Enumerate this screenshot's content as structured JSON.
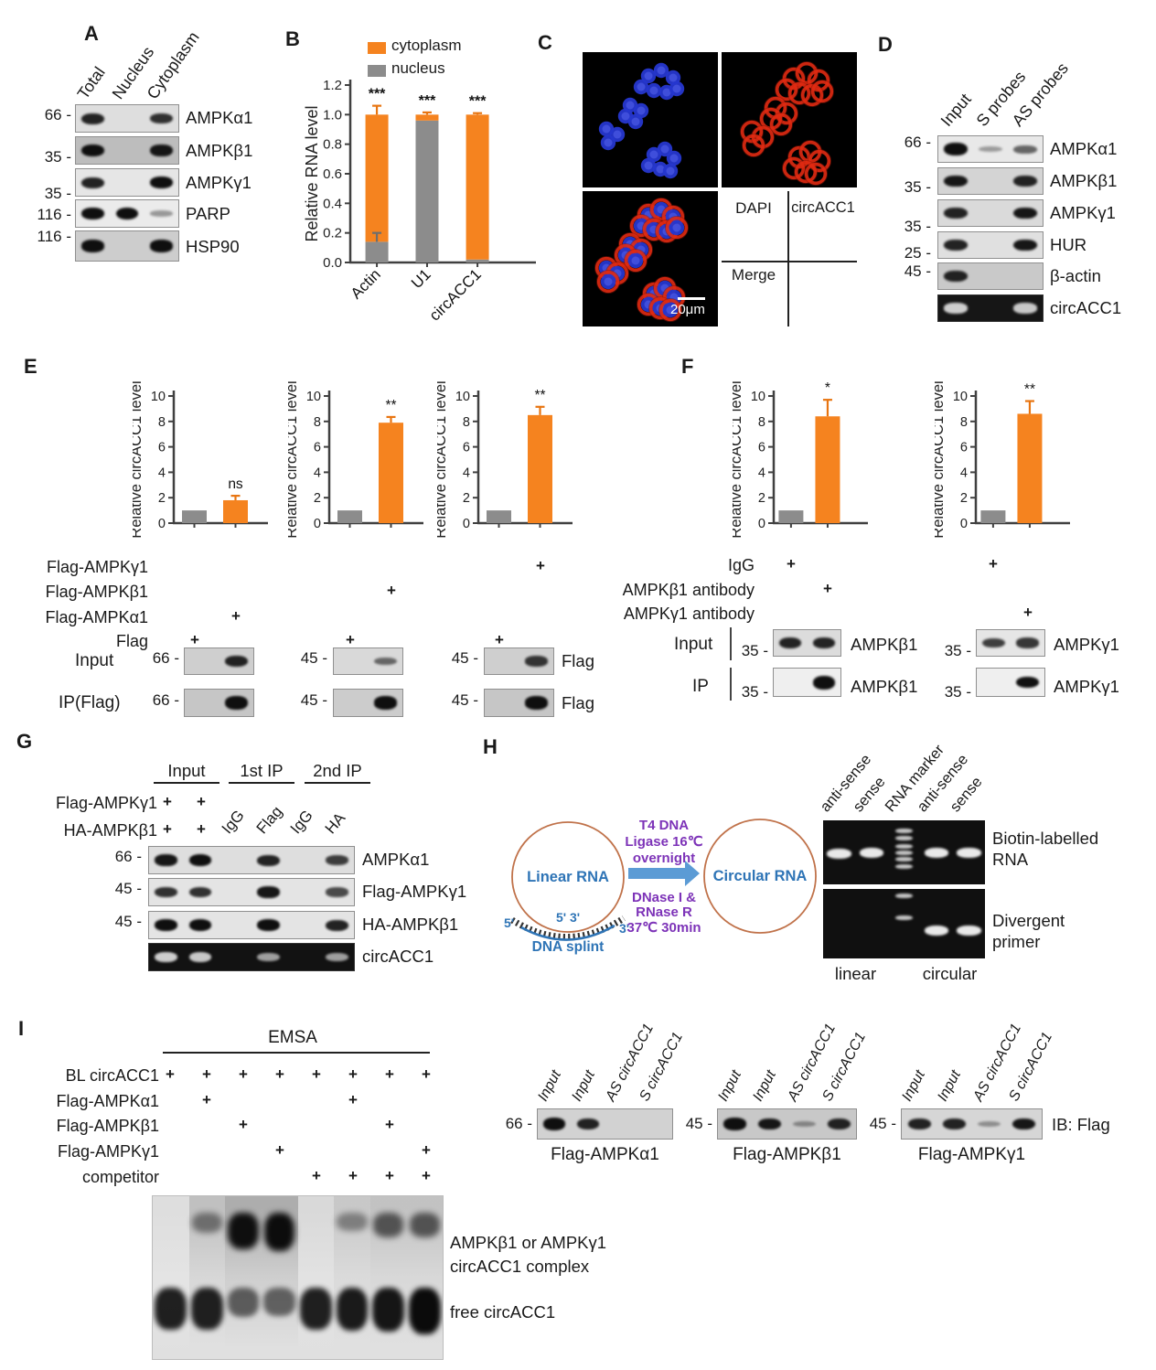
{
  "colors": {
    "orange": "#F5831F",
    "gray": "#8C8C8C",
    "purple": "#7D33B8",
    "blue": "#2E74B6",
    "arrow": "#5B9BD5",
    "circle_stroke": "#C0724A"
  },
  "chart_data": [
    {
      "id": "B",
      "type": "stacked-bar",
      "ylabel": "Relative RNA level",
      "ylim": [
        0,
        1.2
      ],
      "yticks": [
        "0.0",
        "0.2",
        "0.4",
        "0.6",
        "0.8",
        "1.0",
        "1.2"
      ],
      "categories": [
        "Actin",
        "U1",
        "circACC1"
      ],
      "series": [
        {
          "name": "nucleus",
          "color": "#8C8C8C",
          "values": [
            0.14,
            0.96,
            0.02
          ]
        },
        {
          "name": "cytoplasm",
          "color": "#F5831F",
          "values": [
            0.86,
            0.04,
            0.98
          ]
        }
      ],
      "total_errors": [
        0.06,
        0.015,
        0.01
      ],
      "nucleus_errors": [
        0.06,
        0,
        0
      ],
      "sig": [
        "***",
        "***",
        "***"
      ],
      "legend": [
        {
          "label": "cytoplasm",
          "color": "#F5831F"
        },
        {
          "label": "nucleus",
          "color": "#8C8C8C"
        }
      ]
    },
    {
      "id": "E1",
      "type": "bar",
      "ylabel": "Relative circACC1 level",
      "ylim": [
        0,
        10
      ],
      "yticks": [
        "0",
        "2",
        "4",
        "6",
        "8",
        "10"
      ],
      "values": [
        1,
        1.8
      ],
      "colors": [
        "#8C8C8C",
        "#F5831F"
      ],
      "errors": [
        0,
        0.35
      ],
      "sig": "ns"
    },
    {
      "id": "E2",
      "type": "bar",
      "ylabel": "Relative circACC1 level",
      "ylim": [
        0,
        10
      ],
      "yticks": [
        "0",
        "2",
        "4",
        "6",
        "8",
        "10"
      ],
      "values": [
        1,
        7.9
      ],
      "colors": [
        "#8C8C8C",
        "#F5831F"
      ],
      "errors": [
        0,
        0.45
      ],
      "sig": "**"
    },
    {
      "id": "E3",
      "type": "bar",
      "ylabel": "Relative circACC1 level",
      "ylim": [
        0,
        10
      ],
      "yticks": [
        "0",
        "2",
        "4",
        "6",
        "8",
        "10"
      ],
      "values": [
        1,
        8.5
      ],
      "colors": [
        "#8C8C8C",
        "#F5831F"
      ],
      "errors": [
        0,
        0.65
      ],
      "sig": "**"
    },
    {
      "id": "F1",
      "type": "bar",
      "ylabel": "Relative circACC1 level",
      "ylim": [
        0,
        10
      ],
      "yticks": [
        "0",
        "2",
        "4",
        "6",
        "8",
        "10"
      ],
      "values": [
        1,
        8.4
      ],
      "colors": [
        "#8C8C8C",
        "#F5831F"
      ],
      "errors": [
        0,
        1.3
      ],
      "sig": "*"
    },
    {
      "id": "F2",
      "type": "bar",
      "ylabel": "Relative circACC1 level",
      "ylim": [
        0,
        10
      ],
      "yticks": [
        "0",
        "2",
        "4",
        "6",
        "8",
        "10"
      ],
      "values": [
        1,
        8.6
      ],
      "colors": [
        "#8C8C8C",
        "#F5831F"
      ],
      "errors": [
        0,
        1.0
      ],
      "sig": "**"
    }
  ],
  "panelA": {
    "label": "A",
    "lane_labels": [
      "Total",
      "Nucleus",
      "Cytoplasm"
    ],
    "rows": [
      {
        "mw": "66 -",
        "name": "AMPKα1",
        "bands": [
          1,
          0,
          0.9
        ],
        "bg": "#dedede"
      },
      {
        "mw": "35 -",
        "name": "AMPKβ1",
        "bands": [
          1.2,
          0,
          1.1
        ],
        "bg": "#bdbdbd"
      },
      {
        "mw": "35 -",
        "name": "AMPKγ1",
        "bands": [
          1,
          0,
          1.2
        ],
        "bg": "#e6e6e6"
      },
      {
        "mw": "116 -",
        "name": "PARP",
        "bands": [
          1.2,
          1.3,
          0.12
        ],
        "bg": "#ebebeb"
      },
      {
        "mw": "116 -",
        "name": "HSP90",
        "bands": [
          1.2,
          0,
          1.2
        ],
        "bg": "#cdcdcd"
      }
    ]
  },
  "panelB": {
    "label": "B"
  },
  "panelC": {
    "label": "C",
    "labels": {
      "tl": "DAPI",
      "tr": "circACC1",
      "bl": "Merge"
    },
    "scale_bar": "20μm"
  },
  "panelD": {
    "label": "D",
    "lane_labels": [
      "Input",
      "S probes",
      "AS probes"
    ],
    "rows": [
      {
        "mw": "66 -",
        "name": "AMPKα1",
        "bands": [
          1.4,
          0.08,
          0.5
        ],
        "bg": "#e8e8e8"
      },
      {
        "mw": "35 -",
        "name": "AMPKβ1",
        "bands": [
          1.1,
          0,
          1
        ],
        "bg": "#d4d4d4"
      },
      {
        "mw": "35 -",
        "name": "AMPKγ1",
        "bands": [
          1,
          0,
          1.1
        ],
        "bg": "#dadada"
      },
      {
        "mw": "25 -",
        "name": "HUR",
        "bands": [
          1,
          0,
          1.1
        ],
        "bg": "#e0e0e0"
      },
      {
        "mw": "45 -",
        "name": "β-actin",
        "bands": [
          1,
          0,
          0
        ],
        "bg": "#c9c9c9"
      },
      {
        "mw": "",
        "name": "circACC1",
        "bands": [
          0.9,
          0,
          0.85
        ],
        "bg": "#161616",
        "dark": true
      }
    ]
  },
  "panelE": {
    "label": "E",
    "plus_rows": [
      {
        "label": "Flag-AMPKγ1",
        "cells": [
          "",
          "",
          "",
          "",
          "",
          "+"
        ]
      },
      {
        "label": "Flag-AMPKβ1",
        "cells": [
          "",
          "",
          "",
          "+",
          "",
          ""
        ]
      },
      {
        "label": "Flag-AMPKα1",
        "cells": [
          "",
          "+",
          "",
          "",
          "",
          ""
        ]
      },
      {
        "label": "Flag",
        "cells": [
          "+",
          "",
          "+",
          "",
          "+",
          ""
        ]
      }
    ],
    "input_label": "Input",
    "ip_label": "IP(Flag)",
    "blots": [
      {
        "mw_input": "66 -",
        "mw_ip": "66 -",
        "right_input": "",
        "right_ip": "",
        "input": {
          "bands": [
            0,
            1
          ],
          "bg": "#cfcfcf"
        },
        "ip": {
          "bands": [
            0,
            1.45
          ],
          "bg": "#c6c6c6"
        }
      },
      {
        "mw_input": "45 -",
        "mw_ip": "45 -",
        "right_input": "",
        "right_ip": "",
        "input": {
          "bands": [
            0,
            0.45
          ],
          "bg": "#d9d9d9"
        },
        "ip": {
          "bands": [
            0,
            1.35
          ],
          "bg": "#cccccc"
        }
      },
      {
        "mw_input": "45 -",
        "mw_ip": "45 -",
        "right_input": "Flag",
        "right_ip": "Flag",
        "input": {
          "bands": [
            0,
            0.85
          ],
          "bg": "#cfcfcf"
        },
        "ip": {
          "bands": [
            0,
            1.35
          ],
          "bg": "#c6c6c6"
        }
      }
    ]
  },
  "panelF": {
    "label": "F",
    "plus_rows": [
      {
        "label": "IgG",
        "cells": [
          "+",
          "",
          "+",
          ""
        ]
      },
      {
        "label": "AMPKβ1 antibody",
        "cells": [
          "",
          "+",
          "",
          ""
        ]
      },
      {
        "label": "AMPKγ1 antibody",
        "cells": [
          "",
          "",
          "",
          "+"
        ]
      }
    ],
    "input_label": "Input",
    "ip_label": "IP",
    "groups": [
      {
        "mw_input": "35 -",
        "mw_ip": "35 -",
        "protein": "AMPKβ1",
        "input": {
          "bands": [
            1,
            1
          ],
          "bg": "#dcdcdc"
        },
        "ip": {
          "bands": [
            0,
            1.5
          ],
          "bg": "#efefef"
        }
      },
      {
        "mw_input": "35 -",
        "mw_ip": "35 -",
        "protein": "AMPKγ1",
        "input": {
          "bands": [
            0.8,
            0.85
          ],
          "bg": "#e6e6e6"
        },
        "ip": {
          "bands": [
            0,
            1.15
          ],
          "bg": "#efefef"
        }
      }
    ]
  },
  "panelG": {
    "label": "G",
    "group_headers": [
      "Input",
      "1st IP",
      "2nd IP"
    ],
    "plus_rows": [
      {
        "label": "Flag-AMPKγ1",
        "cells": [
          "+",
          "+"
        ]
      },
      {
        "label": "HA-AMPKβ1",
        "cells": [
          "+",
          "+"
        ]
      }
    ],
    "lane_labels": [
      "IgG",
      "Flag",
      "IgG",
      "HA"
    ],
    "rows": [
      {
        "mw": "66 -",
        "name": "AMPKα1",
        "bands": [
          1.1,
          1.2,
          0,
          1,
          0,
          0.8
        ],
        "bg": "#dedede"
      },
      {
        "mw": "45 -",
        "name": "Flag-AMPKγ1",
        "bands": [
          0.9,
          0.9,
          0,
          1.1,
          0,
          0.7
        ],
        "bg": "#e4e4e4"
      },
      {
        "mw": "45 -",
        "name": "HA-AMPKβ1",
        "bands": [
          1.2,
          1.2,
          0,
          1.2,
          0,
          1
        ],
        "bg": "#e4e4e4"
      },
      {
        "mw": "",
        "name": "circACC1",
        "bands": [
          0.9,
          0.85,
          0,
          0.55,
          0,
          0.55
        ],
        "bg": "#121212",
        "dark": true
      }
    ]
  },
  "panelH": {
    "label": "H",
    "diagram": {
      "left_circle": "Linear RNA",
      "right_circle": "Circular RNA",
      "arrow_top": [
        "T4 DNA",
        "Ligase 16℃",
        "overnight"
      ],
      "arrow_bottom": [
        "DNase I &",
        "RNase R",
        "37℃ 30min"
      ],
      "splint_label": "DNA splint",
      "end_left": "5'",
      "end_mid": "5' 3'",
      "end_right": "3'"
    },
    "gel": {
      "lane_labels": [
        "anti-sense",
        "sense",
        "RNA marker",
        "anti-sense",
        "sense"
      ],
      "top_label": [
        "Biotin-labelled",
        "RNA"
      ],
      "bottom_label": [
        "Divergent",
        "primer"
      ],
      "group_labels": [
        "linear",
        "circular"
      ],
      "top_bands": [
        [
          0.52
        ],
        [
          0.5
        ],
        [
          0.16,
          0.28,
          0.4,
          0.5,
          0.6,
          0.72
        ],
        [
          0.5
        ],
        [
          0.5
        ]
      ],
      "bottom_bands": [
        [],
        [],
        [
          0.1,
          0.42
        ],
        [
          0.6
        ],
        [
          0.6
        ]
      ]
    },
    "blots": {
      "lane_labels": [
        "Input",
        "Input",
        "AS circACC1",
        "S circACC1"
      ],
      "ib_label": "IB: Flag",
      "items": [
        {
          "mw": "66 -",
          "caption": "Flag-AMPKα1",
          "strip": {
            "bands": [
              1.25,
              1,
              0,
              0
            ],
            "bg": "#d2d2d2"
          }
        },
        {
          "mw": "45 -",
          "caption": "Flag-AMPKβ1",
          "strip": {
            "bands": [
              1.25,
              1.1,
              0.12,
              1
            ],
            "bg": "#c8c8c8"
          }
        },
        {
          "mw": "45 -",
          "caption": "Flag-AMPKγ1",
          "strip": {
            "bands": [
              1,
              1,
              0.1,
              1.1
            ],
            "bg": "#d6d6d6"
          }
        }
      ]
    }
  },
  "panelI": {
    "label": "I",
    "title": "EMSA",
    "plus_rows": [
      {
        "label": "BL circACC1",
        "cells": [
          "+",
          "+",
          "+",
          "+",
          "+",
          "+",
          "+",
          "+"
        ]
      },
      {
        "label": "Flag-AMPKα1",
        "cells": [
          "",
          "+",
          "",
          "",
          "",
          "+",
          "",
          ""
        ]
      },
      {
        "label": "Flag-AMPKβ1",
        "cells": [
          "",
          "",
          "+",
          "",
          "",
          "",
          "+",
          ""
        ]
      },
      {
        "label": "Flag-AMPKγ1",
        "cells": [
          "",
          "",
          "",
          "+",
          "",
          "",
          "",
          "+"
        ]
      },
      {
        "label": "competitor",
        "cells": [
          "",
          "",
          "",
          "",
          "+",
          "+",
          "+",
          "+"
        ]
      }
    ],
    "gel_lanes": [
      {
        "complex": 0,
        "free": 1,
        "smear": 0.1
      },
      {
        "complex": 0.22,
        "free": 1,
        "smear": 0.38
      },
      {
        "complex": 1.15,
        "free": 0.4,
        "smear": 0.55
      },
      {
        "complex": 1.25,
        "free": 0.35,
        "smear": 0.55
      },
      {
        "complex": 0,
        "free": 1,
        "smear": 0.15
      },
      {
        "complex": 0.1,
        "free": 1.05,
        "smear": 0.3
      },
      {
        "complex": 0.5,
        "free": 1.1,
        "smear": 0.35
      },
      {
        "complex": 0.5,
        "free": 1.2,
        "smear": 0.35
      }
    ],
    "complex_label": [
      "AMPKβ1 or AMPKγ1",
      "circACC1 complex"
    ],
    "free_label": "free circACC1"
  }
}
